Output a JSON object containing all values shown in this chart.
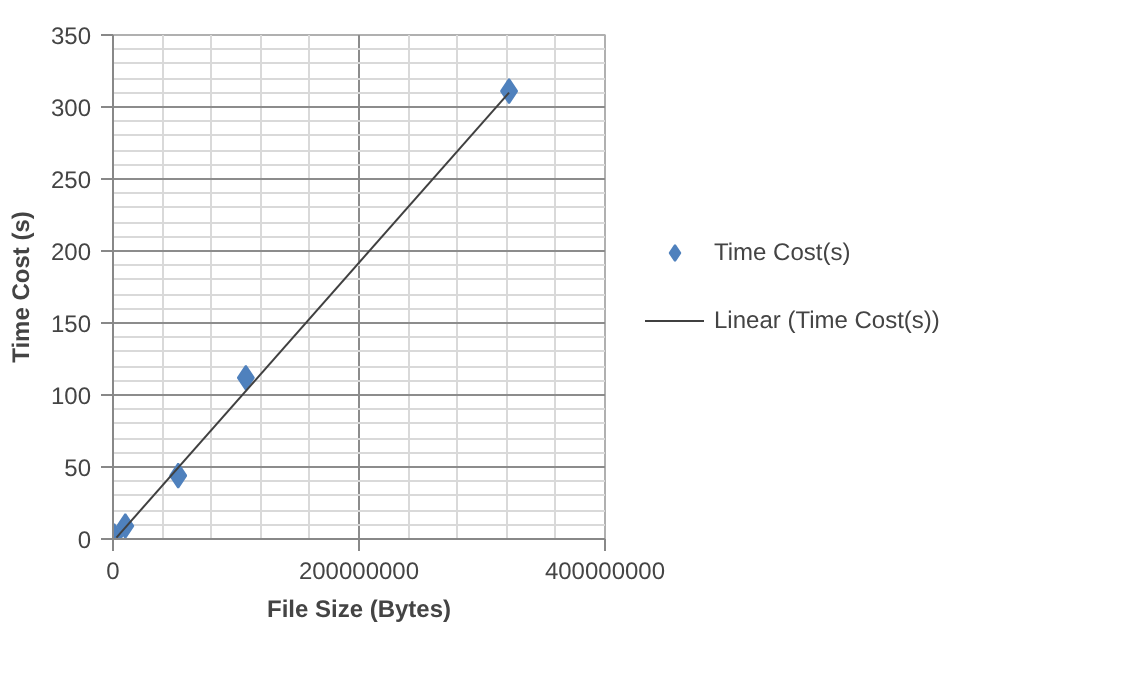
{
  "chart_data": {
    "type": "scatter",
    "xlabel": "File Size (Bytes)",
    "ylabel": "Time Cost (s)",
    "xlim": [
      0,
      400000000
    ],
    "ylim": [
      0,
      350
    ],
    "xticks": [
      0,
      {
        "value": 40000000,
        "label": null
      },
      {
        "value": 80000000,
        "label": null
      },
      {
        "value": 120000000,
        "label": null
      },
      {
        "value": 160000000,
        "label": null
      },
      200000000,
      {
        "value": 240000000,
        "label": null
      },
      {
        "value": 280000000,
        "label": null
      },
      {
        "value": 320000000,
        "label": null
      },
      {
        "value": 360000000,
        "label": null
      },
      400000000
    ],
    "yticks": [
      0,
      {
        "value": 10,
        "label": null
      },
      {
        "value": 20,
        "label": null
      },
      {
        "value": 30,
        "label": null
      },
      {
        "value": 40,
        "label": null
      },
      50,
      {
        "value": 60,
        "label": null
      },
      {
        "value": 70,
        "label": null
      },
      {
        "value": 80,
        "label": null
      },
      {
        "value": 90,
        "label": null
      },
      100,
      {
        "value": 110,
        "label": null
      },
      {
        "value": 120,
        "label": null
      },
      {
        "value": 130,
        "label": null
      },
      {
        "value": 140,
        "label": null
      },
      150,
      {
        "value": 160,
        "label": null
      },
      {
        "value": 170,
        "label": null
      },
      {
        "value": 180,
        "label": null
      },
      {
        "value": 190,
        "label": null
      },
      200,
      {
        "value": 210,
        "label": null
      },
      {
        "value": 220,
        "label": null
      },
      {
        "value": 230,
        "label": null
      },
      {
        "value": 240,
        "label": null
      },
      250,
      {
        "value": 260,
        "label": null
      },
      {
        "value": 270,
        "label": null
      },
      {
        "value": 280,
        "label": null
      },
      {
        "value": 290,
        "label": null
      },
      300,
      {
        "value": 310,
        "label": null
      },
      {
        "value": 320,
        "label": null
      },
      {
        "value": 330,
        "label": null
      },
      {
        "value": 340,
        "label": null
      },
      350
    ],
    "grid": true,
    "legend": "right",
    "marker": "diamond",
    "series": [
      {
        "name": "Time Cost(s)",
        "type": "scatter",
        "color": "#4f81bd",
        "x": [
          1000000,
          10000000,
          53000000,
          108000000,
          322000000
        ],
        "values": [
          2,
          9,
          44,
          112,
          311
        ]
      },
      {
        "name": "Linear (Time Cost(s))",
        "type": "line",
        "color": "#404040",
        "line_style": "solid",
        "marker": "none",
        "x": [
          2800000,
          322000000
        ],
        "values": [
          1,
          310
        ]
      }
    ]
  }
}
